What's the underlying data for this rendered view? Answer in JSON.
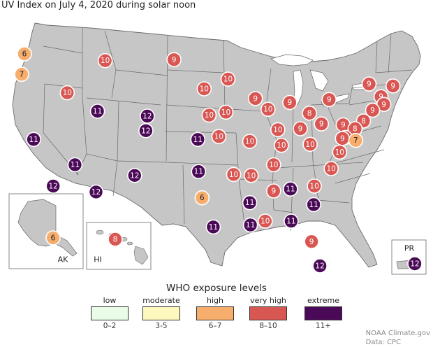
{
  "title": "UV Index on July 4, 2020 during solar noon",
  "colors": {
    "low": "#e8fce8",
    "moderate": "#fdf8bd",
    "high": "#f7ae6d",
    "very_high": "#d95753",
    "extreme": "#4b0a57",
    "land": "#c6c6c6",
    "border": "#6a6a6a",
    "water": "#ffffff"
  },
  "inset_labels": {
    "alaska": "AK",
    "hawaii": "HI",
    "puerto_rico": "PR"
  },
  "legend": {
    "title": "WHO exposure levels",
    "items": [
      {
        "label": "low",
        "range": "0–2",
        "color": "#e8fce8"
      },
      {
        "label": "moderate",
        "range": "3-5",
        "color": "#fdf8bd"
      },
      {
        "label": "high",
        "range": "6–7",
        "color": "#f7ae6d"
      },
      {
        "label": "very high",
        "range": "8–10",
        "color": "#d95753"
      },
      {
        "label": "extreme",
        "range": "11+",
        "color": "#4b0a57"
      }
    ]
  },
  "credit": {
    "line1": "NOAA Climate.gov",
    "line2": "Data: CPC"
  },
  "chart_data": {
    "type": "map",
    "title": "UV Index on July 4, 2020 during solar noon",
    "points": [
      {
        "lat": 47.6,
        "lon": -122.3,
        "uv": 6
      },
      {
        "lat": 45.5,
        "lon": -122.7,
        "uv": 7
      },
      {
        "lat": 43.6,
        "lon": -116.2,
        "uv": 10
      },
      {
        "lat": 46.9,
        "lon": -110.8,
        "uv": 10
      },
      {
        "lat": 47.0,
        "lon": -101.0,
        "uv": 9
      },
      {
        "lat": 41.7,
        "lon": -111.9,
        "uv": 11
      },
      {
        "lat": 41.2,
        "lon": -104.8,
        "uv": 12
      },
      {
        "lat": 39.7,
        "lon": -105.0,
        "uv": 12
      },
      {
        "lat": 38.8,
        "lon": -121.0,
        "uv": 11
      },
      {
        "lat": 36.2,
        "lon": -115.1,
        "uv": 11
      },
      {
        "lat": 34.0,
        "lon": -118.2,
        "uv": 12
      },
      {
        "lat": 33.4,
        "lon": -112.1,
        "uv": 12
      },
      {
        "lat": 35.1,
        "lon": -106.6,
        "uv": 12
      },
      {
        "lat": 38.8,
        "lon": -97.6,
        "uv": 11
      },
      {
        "lat": 35.5,
        "lon": -97.5,
        "uv": 11
      },
      {
        "lat": 32.8,
        "lon": -97.0,
        "uv": 6
      },
      {
        "lat": 29.8,
        "lon": -95.4,
        "uv": 11
      },
      {
        "lat": 44.0,
        "lon": -96.7,
        "uv": 10
      },
      {
        "lat": 45.0,
        "lon": -93.3,
        "uv": 10
      },
      {
        "lat": 41.3,
        "lon": -96.0,
        "uv": 10
      },
      {
        "lat": 41.6,
        "lon": -93.6,
        "uv": 10
      },
      {
        "lat": 39.1,
        "lon": -94.6,
        "uv": 10
      },
      {
        "lat": 35.2,
        "lon": -92.5,
        "uv": 10
      },
      {
        "lat": 35.1,
        "lon": -90.0,
        "uv": 10
      },
      {
        "lat": 32.3,
        "lon": -90.2,
        "uv": 11
      },
      {
        "lat": 30.0,
        "lon": -90.1,
        "uv": 11
      },
      {
        "lat": 30.4,
        "lon": -88.0,
        "uv": 10
      },
      {
        "lat": 38.6,
        "lon": -90.2,
        "uv": 10
      },
      {
        "lat": 43.0,
        "lon": -89.4,
        "uv": 9
      },
      {
        "lat": 41.9,
        "lon": -87.6,
        "uv": 10
      },
      {
        "lat": 39.8,
        "lon": -86.2,
        "uv": 10
      },
      {
        "lat": 38.2,
        "lon": -85.7,
        "uv": 10
      },
      {
        "lat": 36.2,
        "lon": -86.8,
        "uv": 10
      },
      {
        "lat": 33.5,
        "lon": -86.8,
        "uv": 9
      },
      {
        "lat": 33.7,
        "lon": -84.4,
        "uv": 11
      },
      {
        "lat": 30.4,
        "lon": -84.3,
        "uv": 11
      },
      {
        "lat": 42.6,
        "lon": -84.5,
        "uv": 9
      },
      {
        "lat": 41.5,
        "lon": -81.7,
        "uv": 8
      },
      {
        "lat": 39.9,
        "lon": -83.0,
        "uv": 9
      },
      {
        "lat": 38.3,
        "lon": -81.6,
        "uv": 10
      },
      {
        "lat": 42.9,
        "lon": -78.9,
        "uv": 9
      },
      {
        "lat": 40.4,
        "lon": -80.0,
        "uv": 9
      },
      {
        "lat": 40.3,
        "lon": -76.9,
        "uv": 9
      },
      {
        "lat": 44.5,
        "lon": -73.2,
        "uv": 9
      },
      {
        "lat": 44.3,
        "lon": -69.8,
        "uv": 9
      },
      {
        "lat": 43.2,
        "lon": -71.5,
        "uv": 9
      },
      {
        "lat": 42.4,
        "lon": -71.1,
        "uv": 9
      },
      {
        "lat": 41.8,
        "lon": -72.7,
        "uv": 9
      },
      {
        "lat": 40.7,
        "lon": -74.0,
        "uv": 8
      },
      {
        "lat": 39.9,
        "lon": -75.2,
        "uv": 8
      },
      {
        "lat": 39.0,
        "lon": -76.6,
        "uv": 9
      },
      {
        "lat": 38.9,
        "lon": -77.0,
        "uv": 9
      },
      {
        "lat": 38.7,
        "lon": -75.1,
        "uv": 7
      },
      {
        "lat": 37.5,
        "lon": -77.4,
        "uv": 10
      },
      {
        "lat": 35.8,
        "lon": -78.6,
        "uv": 10
      },
      {
        "lat": 34.0,
        "lon": -81.0,
        "uv": 10
      },
      {
        "lat": 32.1,
        "lon": -81.1,
        "uv": 11
      },
      {
        "lat": 28.3,
        "lon": -81.4,
        "uv": 9
      },
      {
        "lat": 25.8,
        "lon": -80.2,
        "uv": 12
      },
      {
        "lat": 18.4,
        "lon": -66.1,
        "uv": 12,
        "region": "PR"
      },
      {
        "lat": 61.2,
        "lon": -149.9,
        "uv": 6,
        "region": "AK"
      },
      {
        "lat": 21.3,
        "lon": -157.9,
        "uv": 8,
        "region": "HI"
      }
    ]
  }
}
